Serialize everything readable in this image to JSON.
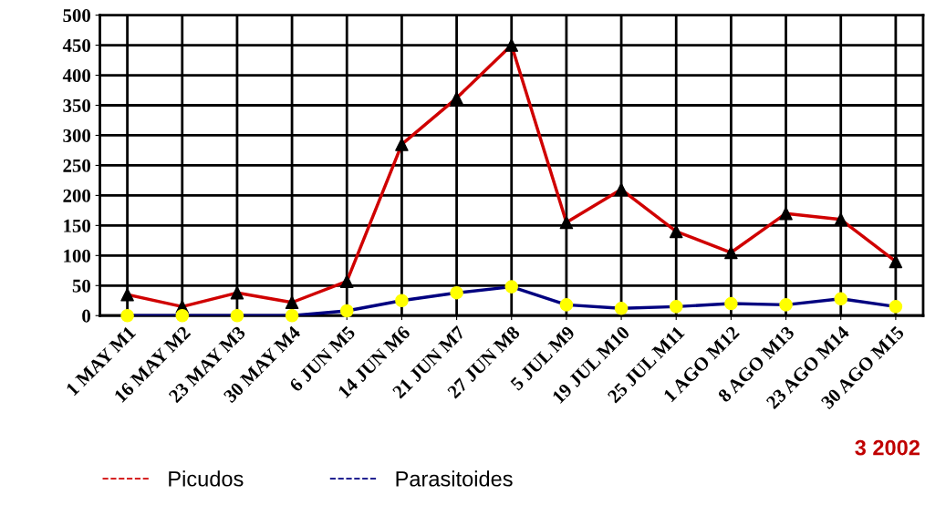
{
  "chart_data": {
    "type": "line",
    "categories": [
      "1 MAY M1",
      "16 MAY M2",
      "23 MAY M3",
      "30 MAY M4",
      "6 JUN M5",
      "14 JUN M6",
      "21 JUN M7",
      "27 JUN M8",
      "5 JUL M9",
      "19 JUL M10",
      "25 JUL M11",
      "1 AGO M12",
      "8 AGO M13",
      "23 AGO M14",
      "30 AGO M15"
    ],
    "series": [
      {
        "name": "Picudos",
        "color": "#d00000",
        "marker": "triangle",
        "colors": [
          "#000000",
          "#000000",
          "#000000",
          "#000000",
          "#000000",
          "#000000",
          "#000000",
          "#000000",
          "#000000",
          "#000000",
          "#000000",
          "#000000",
          "#000000",
          "#000000",
          "#000000"
        ],
        "values": [
          35,
          15,
          38,
          22,
          57,
          285,
          362,
          450,
          155,
          210,
          140,
          105,
          170,
          160,
          90
        ]
      },
      {
        "name": "Parasitoides",
        "color": "#000080",
        "marker": "circle",
        "colors": [
          "#ffff00",
          "#ffff00",
          "#ffff00",
          "#ffff00",
          "#ffff00",
          "#ffff00",
          "#ffff00",
          "#ffff00",
          "#ffff00",
          "#ffff00",
          "#ffff00",
          "#ffff00",
          "#ffff00",
          "#ffff00",
          "#ffff00"
        ],
        "values": [
          0,
          0,
          0,
          0,
          8,
          25,
          38,
          48,
          18,
          12,
          15,
          20,
          18,
          28,
          15
        ]
      }
    ],
    "ylim": [
      0,
      500
    ],
    "yticks": [
      0,
      50,
      100,
      150,
      200,
      250,
      300,
      350,
      400,
      450,
      500
    ],
    "grid": true,
    "legend": "bottom",
    "line_style": "solid",
    "annotations": [
      "3 2002"
    ]
  }
}
